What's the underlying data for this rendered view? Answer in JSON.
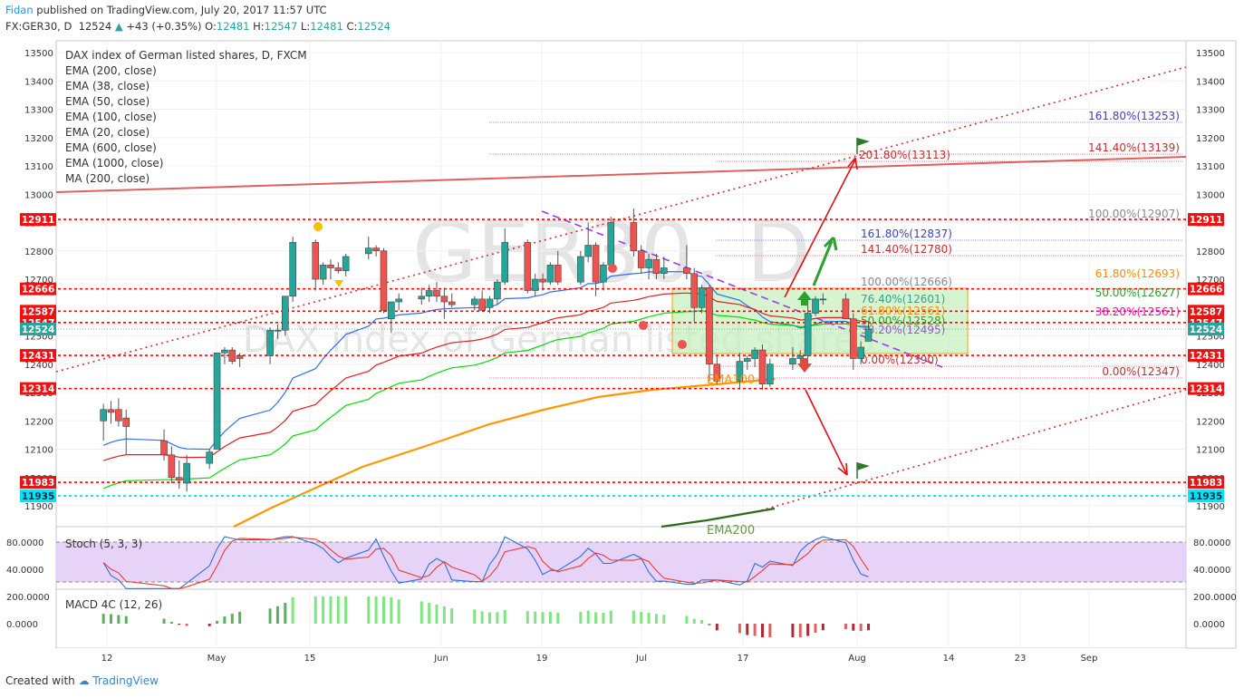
{
  "header": {
    "author": "Fidan",
    "published": "published on TradingView.com, July 20, 2017 11:57 UTC",
    "symbol": "FX:GER30, D",
    "last": "12524",
    "change": "+43 (+0.35%)",
    "o_label": "O:",
    "o": "12481",
    "h_label": "H:",
    "h": "12547",
    "l_label": "L:",
    "l": "12481",
    "c_label": "C:",
    "c": "12524"
  },
  "legend": {
    "title": "DAX index of German listed shares, D, FXCM",
    "items": [
      "EMA (200, close)",
      "EMA (38, close)",
      "EMA (50, close)",
      "EMA (100, close)",
      "EMA (20, close)",
      "EMA (600, close)",
      "EMA (1000, close)",
      "MA (200, close)"
    ]
  },
  "watermark": {
    "symbol": "GER30, D",
    "name": "DAX index of German listed shares"
  },
  "footer": {
    "created_with": "Created with",
    "brand": "TradingView"
  },
  "colors": {
    "up": "#26a69a",
    "down": "#ef5350",
    "level_line": "#ff0000",
    "ema100": "#ff9800",
    "ema20": "#2e6ff2",
    "ema50": "#00e000",
    "ema38": "#e02020",
    "stoch_fill": "#e7d3f7",
    "zone_fill": "#c8f0c0",
    "zone_border": "#ff9800",
    "macd_up": "#57b357",
    "macd_down": "#b22833"
  },
  "chart_data": {
    "type": "candlestick",
    "y_axis": {
      "range": [
        11850,
        13550
      ],
      "ticks": [
        11900,
        12000,
        12100,
        12200,
        12300,
        12400,
        12500,
        12600,
        12700,
        12800,
        12900,
        13000,
        13100,
        13200,
        13300,
        13400,
        13500
      ]
    },
    "x_axis": {
      "ticks": [
        "12",
        "May",
        "15",
        "Jun",
        "19",
        "Jul",
        "17",
        "Aug",
        "14",
        "23",
        "Sep"
      ]
    },
    "candles": [
      {
        "date": "2017-04-10",
        "o": 12200,
        "h": 12260,
        "l": 12130,
        "c": 12240
      },
      {
        "date": "2017-04-11",
        "o": 12240,
        "h": 12270,
        "l": 12190,
        "c": 12230
      },
      {
        "date": "2017-04-12",
        "o": 12240,
        "h": 12280,
        "l": 12180,
        "c": 12200
      },
      {
        "date": "2017-04-13",
        "o": 12210,
        "h": 12240,
        "l": 12080,
        "c": 12180
      },
      {
        "date": "2017-04-18",
        "o": 12130,
        "h": 12170,
        "l": 12060,
        "c": 12080
      },
      {
        "date": "2017-04-19",
        "o": 12080,
        "h": 12110,
        "l": 11980,
        "c": 12000
      },
      {
        "date": "2017-04-20",
        "o": 12000,
        "h": 12060,
        "l": 11960,
        "c": 11990
      },
      {
        "date": "2017-04-21",
        "o": 11980,
        "h": 12080,
        "l": 11950,
        "c": 12050
      },
      {
        "date": "2017-04-24",
        "o": 12050,
        "h": 12100,
        "l": 12030,
        "c": 12090
      },
      {
        "date": "2017-04-25",
        "o": 12100,
        "h": 12440,
        "l": 12100,
        "c": 12440
      },
      {
        "date": "2017-04-26",
        "o": 12440,
        "h": 12460,
        "l": 12400,
        "c": 12450
      },
      {
        "date": "2017-04-27",
        "o": 12450,
        "h": 12460,
        "l": 12400,
        "c": 12410
      },
      {
        "date": "2017-04-28",
        "o": 12430,
        "h": 12440,
        "l": 12390,
        "c": 12420
      },
      {
        "date": "2017-05-02",
        "o": 12430,
        "h": 12530,
        "l": 12400,
        "c": 12520
      },
      {
        "date": "2017-05-03",
        "o": 12520,
        "h": 12540,
        "l": 12490,
        "c": 12520
      },
      {
        "date": "2017-05-04",
        "o": 12520,
        "h": 12640,
        "l": 12500,
        "c": 12640
      },
      {
        "date": "2017-05-05",
        "o": 12640,
        "h": 12850,
        "l": 12620,
        "c": 12830
      },
      {
        "date": "2017-05-08",
        "o": 12830,
        "h": 12840,
        "l": 12660,
        "c": 12700
      },
      {
        "date": "2017-05-09",
        "o": 12700,
        "h": 12760,
        "l": 12680,
        "c": 12750
      },
      {
        "date": "2017-05-10",
        "o": 12750,
        "h": 12770,
        "l": 12700,
        "c": 12740
      },
      {
        "date": "2017-05-11",
        "o": 12740,
        "h": 12760,
        "l": 12720,
        "c": 12730
      },
      {
        "date": "2017-05-12",
        "o": 12730,
        "h": 12790,
        "l": 12710,
        "c": 12780
      },
      {
        "date": "2017-05-15",
        "o": 12790,
        "h": 12850,
        "l": 12770,
        "c": 12810
      },
      {
        "date": "2017-05-16",
        "o": 12810,
        "h": 12820,
        "l": 12780,
        "c": 12800
      },
      {
        "date": "2017-05-17",
        "o": 12800,
        "h": 12810,
        "l": 12580,
        "c": 12590
      },
      {
        "date": "2017-05-18",
        "o": 12560,
        "h": 12620,
        "l": 12510,
        "c": 12620
      },
      {
        "date": "2017-05-19",
        "o": 12620,
        "h": 12650,
        "l": 12590,
        "c": 12630
      },
      {
        "date": "2017-05-22",
        "o": 12630,
        "h": 12670,
        "l": 12610,
        "c": 12640
      },
      {
        "date": "2017-05-23",
        "o": 12640,
        "h": 12680,
        "l": 12620,
        "c": 12660
      },
      {
        "date": "2017-05-24",
        "o": 12660,
        "h": 12690,
        "l": 12620,
        "c": 12640
      },
      {
        "date": "2017-05-25",
        "o": 12640,
        "h": 12670,
        "l": 12560,
        "c": 12620
      },
      {
        "date": "2017-05-26",
        "o": 12620,
        "h": 12650,
        "l": 12600,
        "c": 12610
      },
      {
        "date": "2017-05-29",
        "o": 12610,
        "h": 12640,
        "l": 12590,
        "c": 12630
      },
      {
        "date": "2017-05-30",
        "o": 12630,
        "h": 12660,
        "l": 12590,
        "c": 12590
      },
      {
        "date": "2017-05-31",
        "o": 12600,
        "h": 12640,
        "l": 12580,
        "c": 12630
      },
      {
        "date": "2017-06-01",
        "o": 12630,
        "h": 12700,
        "l": 12610,
        "c": 12690
      },
      {
        "date": "2017-06-02",
        "o": 12690,
        "h": 12880,
        "l": 12680,
        "c": 12830
      },
      {
        "date": "2017-06-05",
        "o": 12830,
        "h": 12840,
        "l": 12650,
        "c": 12660
      },
      {
        "date": "2017-06-06",
        "o": 12660,
        "h": 12720,
        "l": 12640,
        "c": 12700
      },
      {
        "date": "2017-06-07",
        "o": 12700,
        "h": 12720,
        "l": 12660,
        "c": 12690
      },
      {
        "date": "2017-06-08",
        "o": 12690,
        "h": 12760,
        "l": 12680,
        "c": 12750
      },
      {
        "date": "2017-06-09",
        "o": 12750,
        "h": 12800,
        "l": 12680,
        "c": 12690
      },
      {
        "date": "2017-06-12",
        "o": 12690,
        "h": 12800,
        "l": 12680,
        "c": 12780
      },
      {
        "date": "2017-06-13",
        "o": 12780,
        "h": 12900,
        "l": 12760,
        "c": 12820
      },
      {
        "date": "2017-06-14",
        "o": 12820,
        "h": 12830,
        "l": 12640,
        "c": 12690
      },
      {
        "date": "2017-06-15",
        "o": 12690,
        "h": 12760,
        "l": 12660,
        "c": 12750
      },
      {
        "date": "2017-06-16",
        "o": 12750,
        "h": 12920,
        "l": 12740,
        "c": 12900
      },
      {
        "date": "2017-06-19",
        "o": 12900,
        "h": 12950,
        "l": 12780,
        "c": 12800
      },
      {
        "date": "2017-06-20",
        "o": 12800,
        "h": 12820,
        "l": 12720,
        "c": 12740
      },
      {
        "date": "2017-06-21",
        "o": 12740,
        "h": 12790,
        "l": 12700,
        "c": 12770
      },
      {
        "date": "2017-06-22",
        "o": 12770,
        "h": 12790,
        "l": 12700,
        "c": 12720
      },
      {
        "date": "2017-06-23",
        "o": 12720,
        "h": 12780,
        "l": 12700,
        "c": 12740
      },
      {
        "date": "2017-06-26",
        "o": 12740,
        "h": 12820,
        "l": 12700,
        "c": 12720
      },
      {
        "date": "2017-06-27",
        "o": 12720,
        "h": 12740,
        "l": 12550,
        "c": 12600
      },
      {
        "date": "2017-06-28",
        "o": 12600,
        "h": 12680,
        "l": 12580,
        "c": 12670
      },
      {
        "date": "2017-06-29",
        "o": 12670,
        "h": 12680,
        "l": 12340,
        "c": 12400
      },
      {
        "date": "2017-06-30",
        "o": 12400,
        "h": 12430,
        "l": 12330,
        "c": 12340
      },
      {
        "date": "2017-07-03",
        "o": 12340,
        "h": 12440,
        "l": 12310,
        "c": 12410
      },
      {
        "date": "2017-07-04",
        "o": 12410,
        "h": 12430,
        "l": 12380,
        "c": 12420
      },
      {
        "date": "2017-07-05",
        "o": 12420,
        "h": 12460,
        "l": 12390,
        "c": 12450
      },
      {
        "date": "2017-07-06",
        "o": 12450,
        "h": 12470,
        "l": 12310,
        "c": 12330
      },
      {
        "date": "2017-07-07",
        "o": 12330,
        "h": 12420,
        "l": 12320,
        "c": 12400
      },
      {
        "date": "2017-07-10",
        "o": 12400,
        "h": 12460,
        "l": 12380,
        "c": 12420
      },
      {
        "date": "2017-07-11",
        "o": 12420,
        "h": 12450,
        "l": 12390,
        "c": 12430
      },
      {
        "date": "2017-07-12",
        "o": 12430,
        "h": 12640,
        "l": 12420,
        "c": 12580
      },
      {
        "date": "2017-07-13",
        "o": 12580,
        "h": 12640,
        "l": 12570,
        "c": 12630
      },
      {
        "date": "2017-07-14",
        "o": 12630,
        "h": 12650,
        "l": 12610,
        "c": 12630
      },
      {
        "date": "2017-07-17",
        "o": 12630,
        "h": 12650,
        "l": 12560,
        "c": 12560
      },
      {
        "date": "2017-07-18",
        "o": 12560,
        "h": 12580,
        "l": 12380,
        "c": 12420
      },
      {
        "date": "2017-07-19",
        "o": 12420,
        "h": 12480,
        "l": 12400,
        "c": 12460
      },
      {
        "date": "2017-07-20",
        "o": 12481,
        "h": 12547,
        "l": 12481,
        "c": 12524
      }
    ],
    "horizontal_levels": [
      12911,
      12666,
      12587,
      12547,
      12524,
      12431,
      12314,
      11983,
      11935
    ],
    "fib_labels": [
      "161.80%(13253)",
      "141.40%(13139)",
      "201.80%(13113)",
      "100.00%(12907)",
      "161.80%(12837)",
      "141.40%(12780)",
      "100.00%(12666)",
      "61.80%(12693)",
      "50.00%(12627)",
      "76.40%(12601)",
      "38.20%(12561)",
      "61.80%(12561)",
      "50.00%(12528)",
      "38.20%(12495)",
      "0.00%(12390)",
      "0.00%(12347)"
    ],
    "ema_labels": [
      "EMA100",
      "EMA200"
    ],
    "stoch": {
      "label": "Stoch (5, 3, 3)",
      "ticks": [
        "80.0000",
        "40.0000"
      ],
      "upper": 80,
      "lower": 20
    },
    "macd": {
      "label": "MACD 4C (12, 26)",
      "ticks": [
        "200.0000",
        "0.0000"
      ]
    }
  }
}
